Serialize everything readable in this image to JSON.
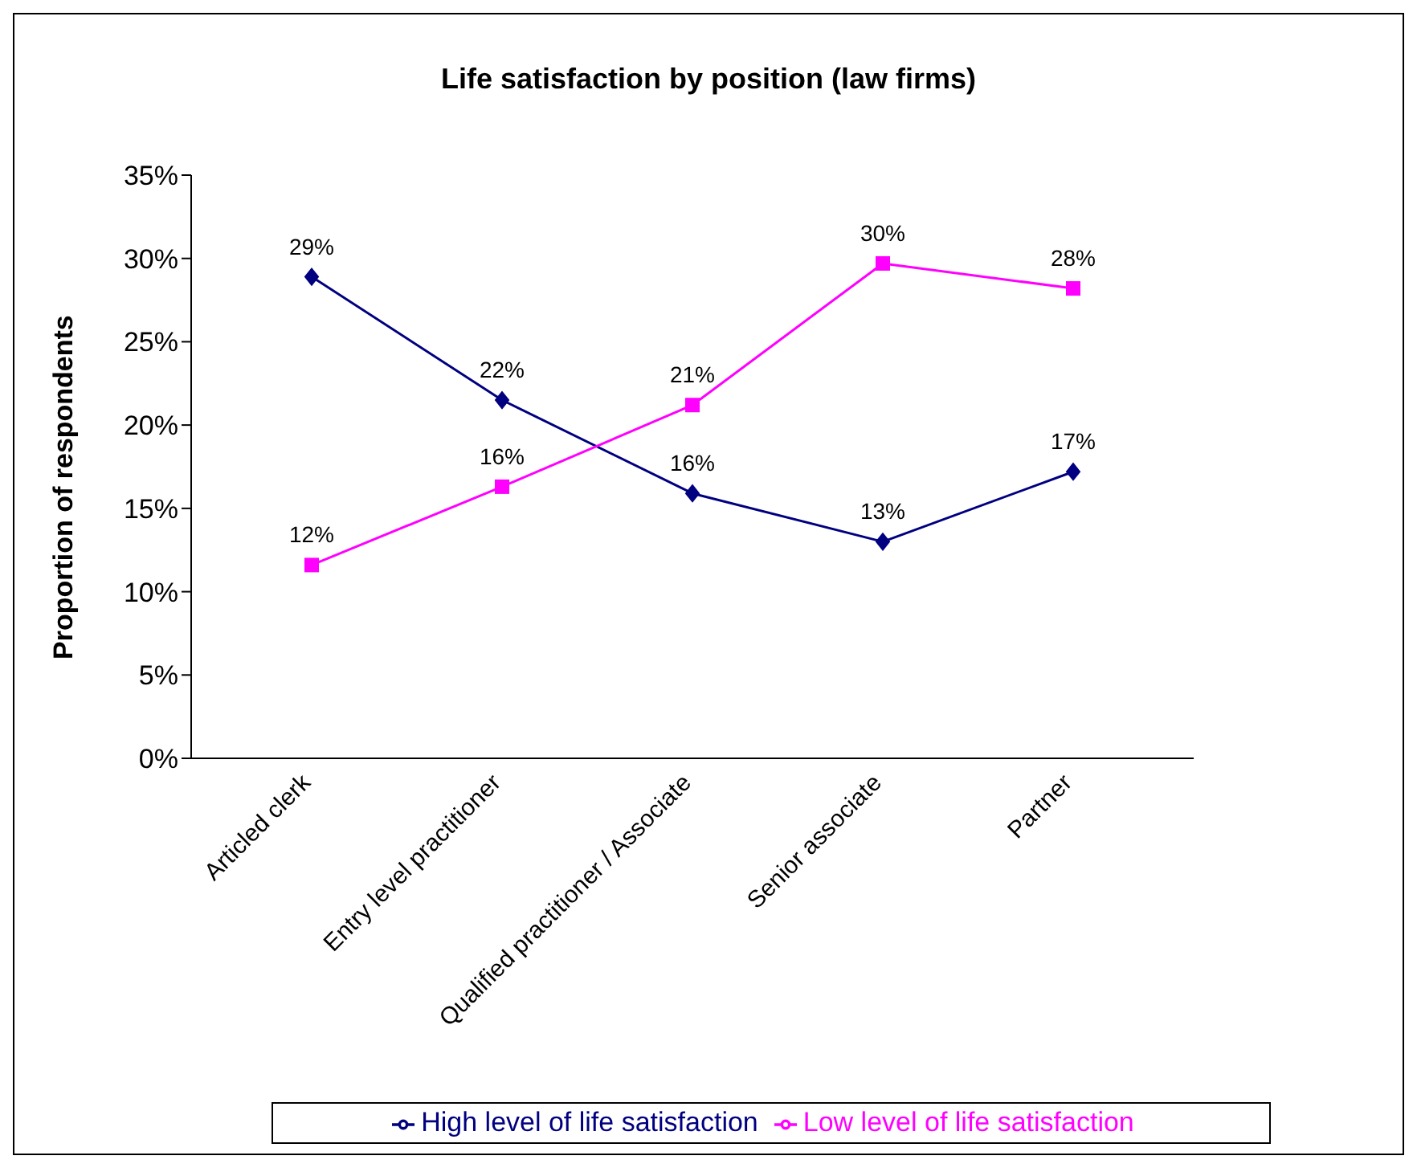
{
  "chart_data": {
    "type": "line",
    "title": "Life satisfaction by position (law firms)",
    "ylabel": "Proportion of respondents",
    "categories": [
      "Articled clerk",
      "Entry level practitioner",
      "Qualified practitioner / Associate",
      "Senior associate",
      "Partner"
    ],
    "series": [
      {
        "name": "High level of life satisfaction",
        "color": "#000080",
        "marker": "diamond",
        "values": [
          28.9,
          21.5,
          15.9,
          13.0,
          17.2
        ],
        "value_labels": [
          "29%",
          "22%",
          "16%",
          "13%",
          "17%"
        ]
      },
      {
        "name": "Low level of life satisfaction",
        "color": "#ff00ff",
        "marker": "square",
        "values": [
          11.6,
          16.3,
          21.2,
          29.7,
          28.2
        ],
        "value_labels": [
          "12%",
          "16%",
          "21%",
          "30%",
          "28%"
        ]
      }
    ],
    "ylim": [
      0,
      35
    ],
    "yticks": [
      {
        "value": 0,
        "label": "0%"
      },
      {
        "value": 5,
        "label": "5%"
      },
      {
        "value": 10,
        "label": "10%"
      },
      {
        "value": 15,
        "label": "15%"
      },
      {
        "value": 20,
        "label": "20%"
      },
      {
        "value": 25,
        "label": "25%"
      },
      {
        "value": 30,
        "label": "30%"
      },
      {
        "value": 35,
        "label": "35%"
      }
    ],
    "grid": false,
    "legend": "bottom",
    "line_style": "solid"
  }
}
